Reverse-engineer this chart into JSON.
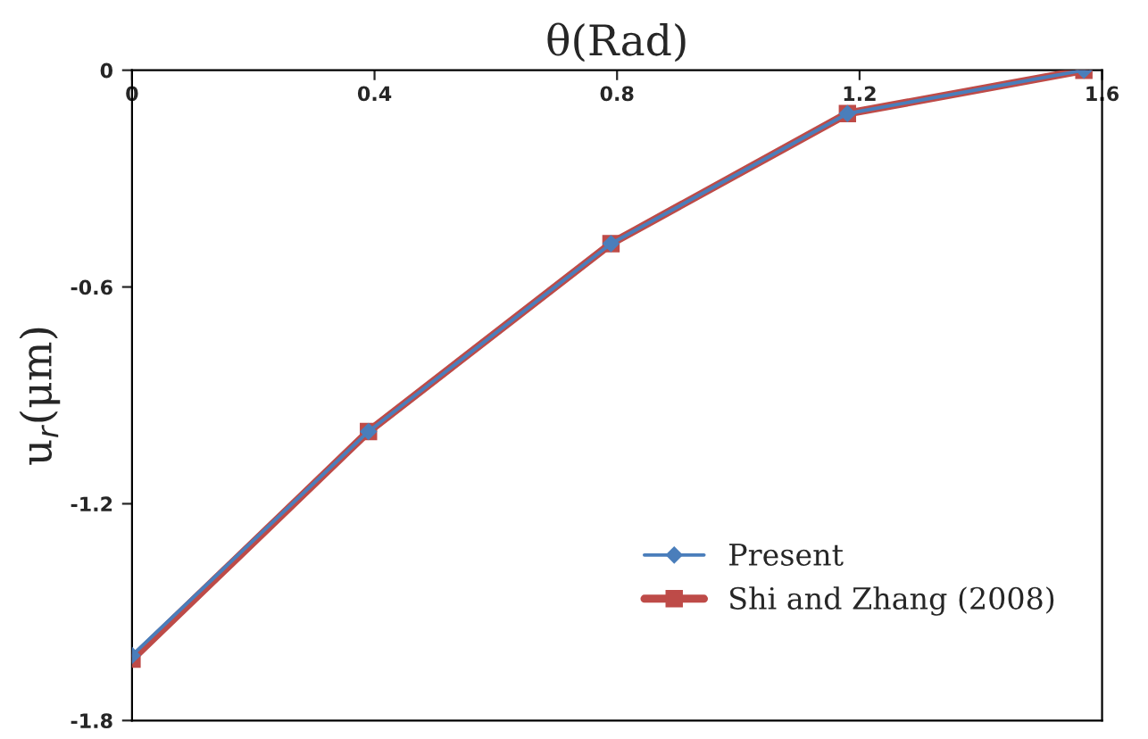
{
  "chart_data": {
    "type": "line",
    "xlabel": "θ(Rad)",
    "ylabel": "u$_{r}$(μm)",
    "x": [
      0,
      0.39,
      0.79,
      1.18,
      1.57
    ],
    "series": [
      {
        "name": "Present",
        "color": "#4a7ebb",
        "marker": "diamond",
        "values": [
          -1.62,
          -1.0,
          -0.48,
          -0.12,
          0
        ]
      },
      {
        "name": "Shi and Zhang (2008)",
        "color": "#be4b48",
        "marker": "square",
        "values": [
          -1.63,
          -1.0,
          -0.48,
          -0.12,
          0
        ]
      }
    ],
    "xlim": [
      0,
      1.6
    ],
    "xticks": [
      0,
      0.4,
      0.8,
      1.2,
      1.6
    ],
    "ylim": [
      -1.8,
      0
    ],
    "yticks": [
      0,
      -0.6,
      -1.2,
      -1.8
    ],
    "grid": false,
    "legend": "bottom right"
  }
}
